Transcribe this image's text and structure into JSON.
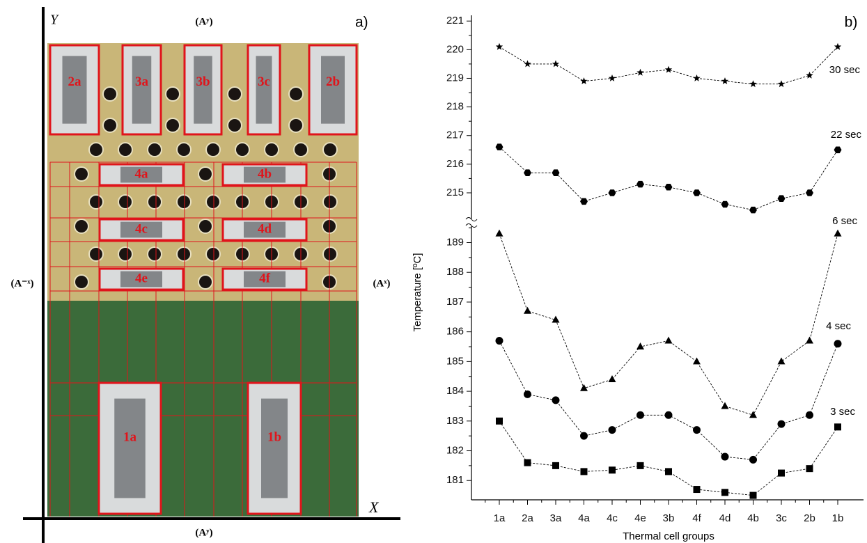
{
  "photo": {
    "panel_label": "a)",
    "y_axis": "Y",
    "x_axis": "X",
    "top": "(Aʸ)",
    "bottom": "(Aʸ)",
    "left": "(A⁻ˣ)",
    "right": "(Aˣ)",
    "cells": [
      "2a",
      "3a",
      "3b",
      "3c",
      "2b",
      "4a",
      "4b",
      "4c",
      "4d",
      "4e",
      "4f",
      "1a",
      "1b"
    ]
  },
  "chart_data": {
    "type": "line",
    "panel_label": "b)",
    "x_label": "Thermal cell groups",
    "y_label": "Temperature [ºC]",
    "categories": [
      "1a",
      "2a",
      "3a",
      "4a",
      "4c",
      "4e",
      "3b",
      "4f",
      "4d",
      "4b",
      "3c",
      "2b",
      "1b"
    ],
    "ylim": [
      180.35,
      189.55
    ],
    "yticks": [
      181,
      182,
      183,
      184,
      185,
      186,
      187,
      188,
      189
    ],
    "y2lim": [
      214.1,
      221.2
    ],
    "y2ticks": [
      215,
      216,
      217,
      218,
      219,
      220,
      221
    ],
    "axis_break": true,
    "series": [
      {
        "name": "30 sec",
        "axis": "y2",
        "marker": "star",
        "color": "#000000",
        "values": [
          220.1,
          219.5,
          219.5,
          218.9,
          219.0,
          219.2,
          219.3,
          219.0,
          218.9,
          218.8,
          218.8,
          219.1,
          220.1
        ]
      },
      {
        "name": "22 sec",
        "axis": "y2",
        "marker": "hexagon",
        "color": "#000000",
        "values": [
          216.6,
          215.7,
          215.7,
          214.7,
          215.0,
          215.3,
          215.2,
          215.0,
          214.6,
          214.4,
          214.8,
          215.0,
          216.5
        ]
      },
      {
        "name": "6 sec",
        "axis": "y",
        "marker": "triangle",
        "color": "#000000",
        "values": [
          189.3,
          186.7,
          186.4,
          184.1,
          184.4,
          185.5,
          185.7,
          185.0,
          183.5,
          183.2,
          185.0,
          185.7,
          189.3
        ]
      },
      {
        "name": "4 sec",
        "axis": "y",
        "marker": "circle",
        "color": "#000000",
        "values": [
          185.7,
          183.9,
          183.7,
          182.5,
          182.7,
          183.2,
          183.2,
          182.7,
          181.8,
          181.7,
          182.9,
          183.2,
          185.6
        ]
      },
      {
        "name": "3 sec",
        "axis": "y",
        "marker": "square",
        "color": "#000000",
        "values": [
          183.0,
          181.6,
          181.5,
          181.3,
          181.35,
          181.5,
          181.3,
          180.7,
          180.6,
          180.5,
          181.25,
          181.4,
          182.8
        ]
      }
    ]
  }
}
